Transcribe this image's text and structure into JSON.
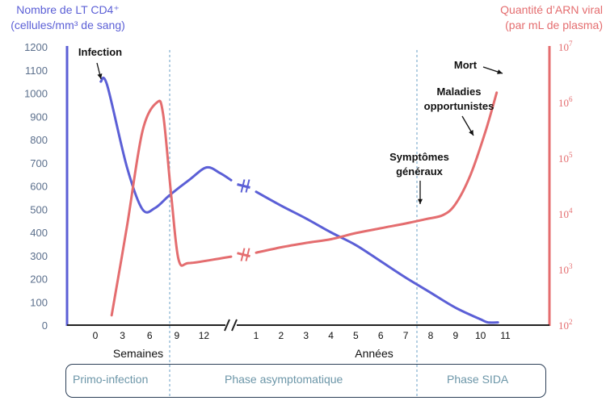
{
  "left_axis_title_line1": "Nombre de LT CD4⁺",
  "left_axis_title_line2": "(cellules/mm³ de sang)",
  "right_axis_title_line1": "Quantité d’ARN viral",
  "right_axis_title_line2": "(par mL de plasma)",
  "phases": [
    "Primo-infection",
    "Phase asymptomatique",
    "Phase SIDA"
  ],
  "colors": {
    "cd4": "#5b5fd6",
    "rna": "#e46d6f",
    "axis_text": "#5b6f8c",
    "divider": "#6a9fc4"
  },
  "chart_data": {
    "type": "line",
    "left_axis": {
      "ticks": [
        0,
        100,
        200,
        300,
        400,
        500,
        600,
        700,
        800,
        900,
        1000,
        1100,
        1200
      ],
      "ylim": [
        0,
        1200
      ]
    },
    "right_axis": {
      "ticks": [
        "10^2",
        "10^3",
        "10^4",
        "10^5",
        "10^6",
        "10^7"
      ],
      "scale": "log",
      "ylim": [
        100,
        10000000
      ]
    },
    "x_weeks": {
      "ticks": [
        0,
        3,
        6,
        9,
        12
      ],
      "label": "Semaines"
    },
    "x_years": {
      "ticks": [
        1,
        2,
        3,
        4,
        5,
        6,
        7,
        8,
        9,
        10,
        11
      ],
      "label": "Années"
    },
    "series": [
      {
        "name": "Nombre de LT CD4⁺",
        "axis": "left",
        "weeks": [
          [
            0.6,
            1050
          ],
          [
            1.3,
            1035
          ],
          [
            3.5,
            680
          ],
          [
            5.2,
            500
          ],
          [
            6.6,
            505
          ],
          [
            8.2,
            560
          ],
          [
            10.5,
            630
          ],
          [
            12.3,
            680
          ],
          [
            13.8,
            655
          ],
          [
            15,
            625
          ]
        ],
        "years": [
          [
            1,
            575
          ],
          [
            2,
            515
          ],
          [
            3,
            460
          ],
          [
            4,
            400
          ],
          [
            5,
            345
          ],
          [
            6,
            275
          ],
          [
            7,
            205
          ],
          [
            8,
            140
          ],
          [
            9,
            75
          ],
          [
            10,
            25
          ],
          [
            10.3,
            12
          ],
          [
            10.7,
            12
          ]
        ]
      },
      {
        "name": "Quantité d’ARN viral",
        "axis": "right",
        "weeks": [
          [
            1.8,
            150
          ],
          [
            3.5,
            6000
          ],
          [
            5.2,
            300000
          ],
          [
            6.8,
            1000000
          ],
          [
            7.5,
            600000
          ],
          [
            8.4,
            20000
          ],
          [
            9.2,
            1500
          ],
          [
            10.3,
            1300
          ],
          [
            13,
            1500
          ],
          [
            15,
            1700
          ]
        ],
        "years": [
          [
            1,
            2000
          ],
          [
            2,
            2500
          ],
          [
            3,
            3000
          ],
          [
            4,
            3500
          ],
          [
            5,
            4500
          ],
          [
            6,
            5500
          ],
          [
            7,
            6700
          ],
          [
            7.8,
            8000
          ],
          [
            8.5,
            9500
          ],
          [
            9,
            15000
          ],
          [
            9.6,
            50000
          ],
          [
            10.2,
            300000
          ],
          [
            10.65,
            1500000
          ]
        ]
      }
    ],
    "annotations": [
      {
        "text": "Infection"
      },
      {
        "text": "Mort"
      },
      {
        "text": [
          "Maladies",
          "opportunistes"
        ]
      },
      {
        "text": [
          "Symptômes",
          "généraux"
        ]
      }
    ]
  }
}
